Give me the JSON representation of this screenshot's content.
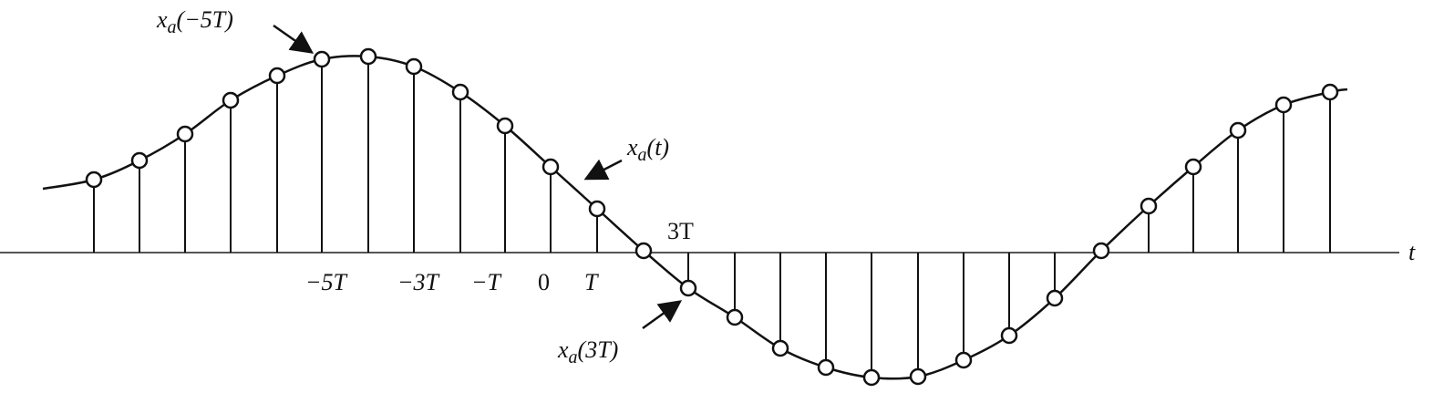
{
  "annotations": [
    {
      "base": "x",
      "sub": "a",
      "arg": "(−5T)"
    },
    {
      "base": "x",
      "sub": "a",
      "arg": "(t)"
    },
    {
      "base": "x",
      "sub": "a",
      "arg": "(3T)"
    }
  ],
  "axis": {
    "name": "t",
    "ticks": [
      "−5T",
      "−3T",
      "−T",
      "0",
      "T"
    ],
    "above_label": "3T"
  }
}
